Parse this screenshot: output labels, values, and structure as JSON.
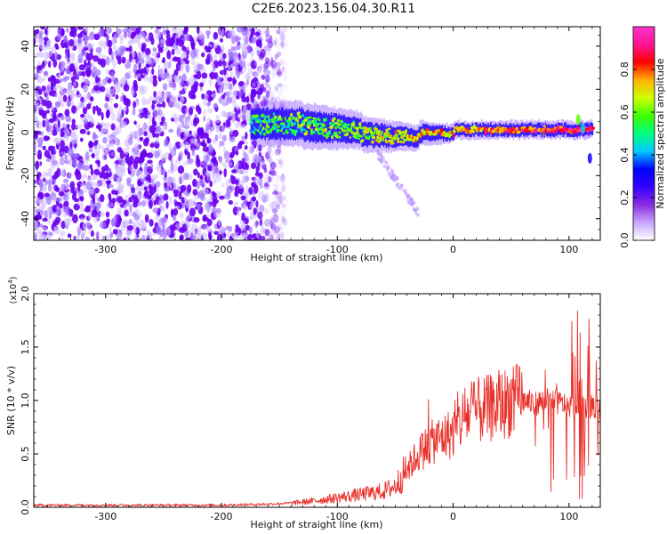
{
  "page": {
    "title": "C2E6.2023.156.04.30.R11"
  },
  "chart_data": [
    {
      "type": "heatmap",
      "ylabel": "Frequency (Hz)",
      "xlabel": "Height of straight line (km)",
      "xlim": [
        -362,
        127
      ],
      "ylim": [
        -50,
        49
      ],
      "x_ticks": [
        -300,
        -200,
        -100,
        0,
        100
      ],
      "y_ticks": [
        -40,
        -20,
        0,
        20,
        40
      ],
      "colorbar": {
        "label": "Normalized spectral amplitude",
        "range": [
          0.0,
          1.0
        ],
        "ticks": [
          0.0,
          0.2,
          0.4,
          0.6,
          0.8
        ],
        "colors": [
          "#ffffff",
          "#c9a6ff",
          "#8a2be2",
          "#3300ff",
          "#0000ff",
          "#00c8ff",
          "#00ff80",
          "#40ff00",
          "#d0ff00",
          "#ffb000",
          "#ff0000",
          "#ff1493",
          "#ff33cc"
        ]
      },
      "regions": [
        {
          "name": "broadband noise",
          "x_range": [
            -362,
            -150
          ],
          "y_range": [
            -50,
            49
          ],
          "level": 0.3
        },
        {
          "name": "signal band",
          "x_range": [
            -175,
            120
          ],
          "center_frequency": 1,
          "level_start": 0.5,
          "level_end": 0.9
        },
        {
          "name": "decaying tail",
          "x_range": [
            -65,
            -30
          ],
          "y_range": [
            -37,
            -10
          ],
          "level": 0.15
        }
      ]
    },
    {
      "type": "line",
      "ylabel": "SNR (10 * v/v)",
      "xlabel": "Height of straight line (km)",
      "multiplier": "(x10",
      "multiplier_exp": "4",
      "multiplier_close": ")",
      "xlim": [
        -362,
        127
      ],
      "ylim": [
        0,
        2.0
      ],
      "x_ticks": [
        -300,
        -200,
        -100,
        0,
        100
      ],
      "y_ticks": [
        0.0,
        0.5,
        1.0,
        1.5,
        2.0
      ],
      "y_tick_labels": [
        "0.0",
        "0.5",
        "1.0",
        "1.5",
        "2.0"
      ],
      "series": [
        {
          "color": "#e8302a",
          "envelope_x": [
            -362,
            -200,
            -160,
            -140,
            -120,
            -100,
            -80,
            -60,
            -50,
            -40,
            -30,
            -20,
            -10,
            0,
            10,
            20,
            30,
            40,
            50,
            60,
            70,
            80,
            90,
            100,
            110,
            120,
            127
          ],
          "envelope_y": [
            0.02,
            0.02,
            0.03,
            0.04,
            0.06,
            0.09,
            0.12,
            0.15,
            0.2,
            0.35,
            0.5,
            0.6,
            0.65,
            0.7,
            0.85,
            0.9,
            0.92,
            0.95,
            1.0,
            1.0,
            0.97,
            1.0,
            0.98,
            0.95,
            0.95,
            0.95,
            0.93
          ]
        }
      ]
    }
  ]
}
